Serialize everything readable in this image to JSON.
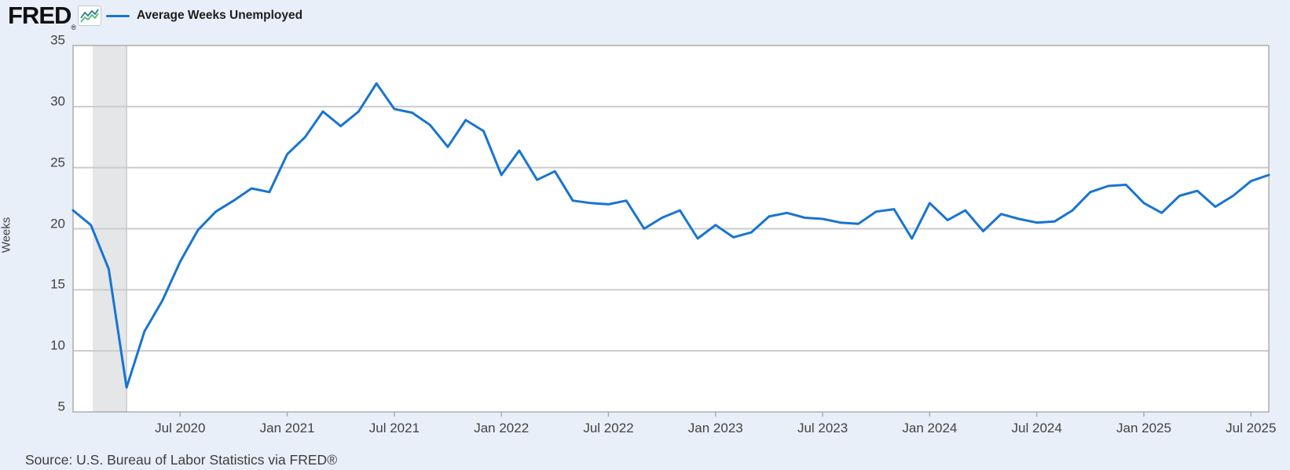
{
  "header": {
    "logo_text": "FRED",
    "logo_registered": "®",
    "legend": {
      "label": "Average Weeks Unemployed"
    }
  },
  "footer": {
    "source": "Source: U.S. Bureau of Labor Statistics via FRED®"
  },
  "colors": {
    "background": "#e9eff8",
    "plot_background": "#ffffff",
    "line": "#1874d2",
    "grid": "#cccccc",
    "plot_border": "#adadad",
    "recession_band": "#e4e6e8",
    "tick_text": "#424242"
  },
  "chart_data": {
    "type": "line",
    "title": "Average Weeks Unemployed",
    "ylabel": "Weeks",
    "xlabel": "",
    "ylim": [
      5,
      35
    ],
    "grid": "horizontal",
    "legend_position": "top-left",
    "y_ticks": [
      35,
      30,
      25,
      20,
      15,
      10,
      5
    ],
    "x_start_month": "2020-01",
    "x_end_month": "2025-08",
    "x_ticks": [
      {
        "label": "Jul 2020",
        "index": 6
      },
      {
        "label": "Jan 2021",
        "index": 12
      },
      {
        "label": "Jul 2021",
        "index": 18
      },
      {
        "label": "Jan 2022",
        "index": 24
      },
      {
        "label": "Jul 2022",
        "index": 30
      },
      {
        "label": "Jan 2023",
        "index": 36
      },
      {
        "label": "Jul 2023",
        "index": 42
      },
      {
        "label": "Jan 2024",
        "index": 48
      },
      {
        "label": "Jul 2024",
        "index": 54
      },
      {
        "label": "Jan 2025",
        "index": 60
      },
      {
        "label": "Jul 2025",
        "index": 66
      }
    ],
    "recession_band": {
      "start_month": "2020-02",
      "end_month": "2020-04",
      "start_index": 1.1,
      "end_index": 3
    },
    "series": [
      {
        "name": "Average Weeks Unemployed",
        "units": "Weeks",
        "frequency": "monthly",
        "values": [
          21.5,
          20.3,
          16.7,
          7.0,
          11.6,
          14.1,
          17.3,
          19.9,
          21.4,
          22.3,
          23.3,
          23.0,
          26.1,
          27.5,
          29.6,
          28.4,
          29.6,
          31.9,
          29.8,
          29.5,
          28.5,
          26.7,
          28.9,
          28.0,
          24.4,
          26.4,
          24.0,
          24.7,
          22.3,
          22.1,
          22.0,
          22.3,
          20.0,
          20.9,
          21.5,
          19.2,
          20.3,
          19.3,
          19.7,
          21.0,
          21.3,
          20.9,
          20.8,
          20.5,
          20.4,
          21.4,
          21.6,
          19.2,
          22.1,
          20.7,
          21.5,
          19.8,
          21.2,
          20.8,
          20.5,
          20.6,
          21.5,
          23.0,
          23.5,
          23.6,
          22.1,
          21.3,
          22.7,
          23.1,
          21.8,
          22.7,
          23.9,
          24.4
        ]
      }
    ]
  }
}
